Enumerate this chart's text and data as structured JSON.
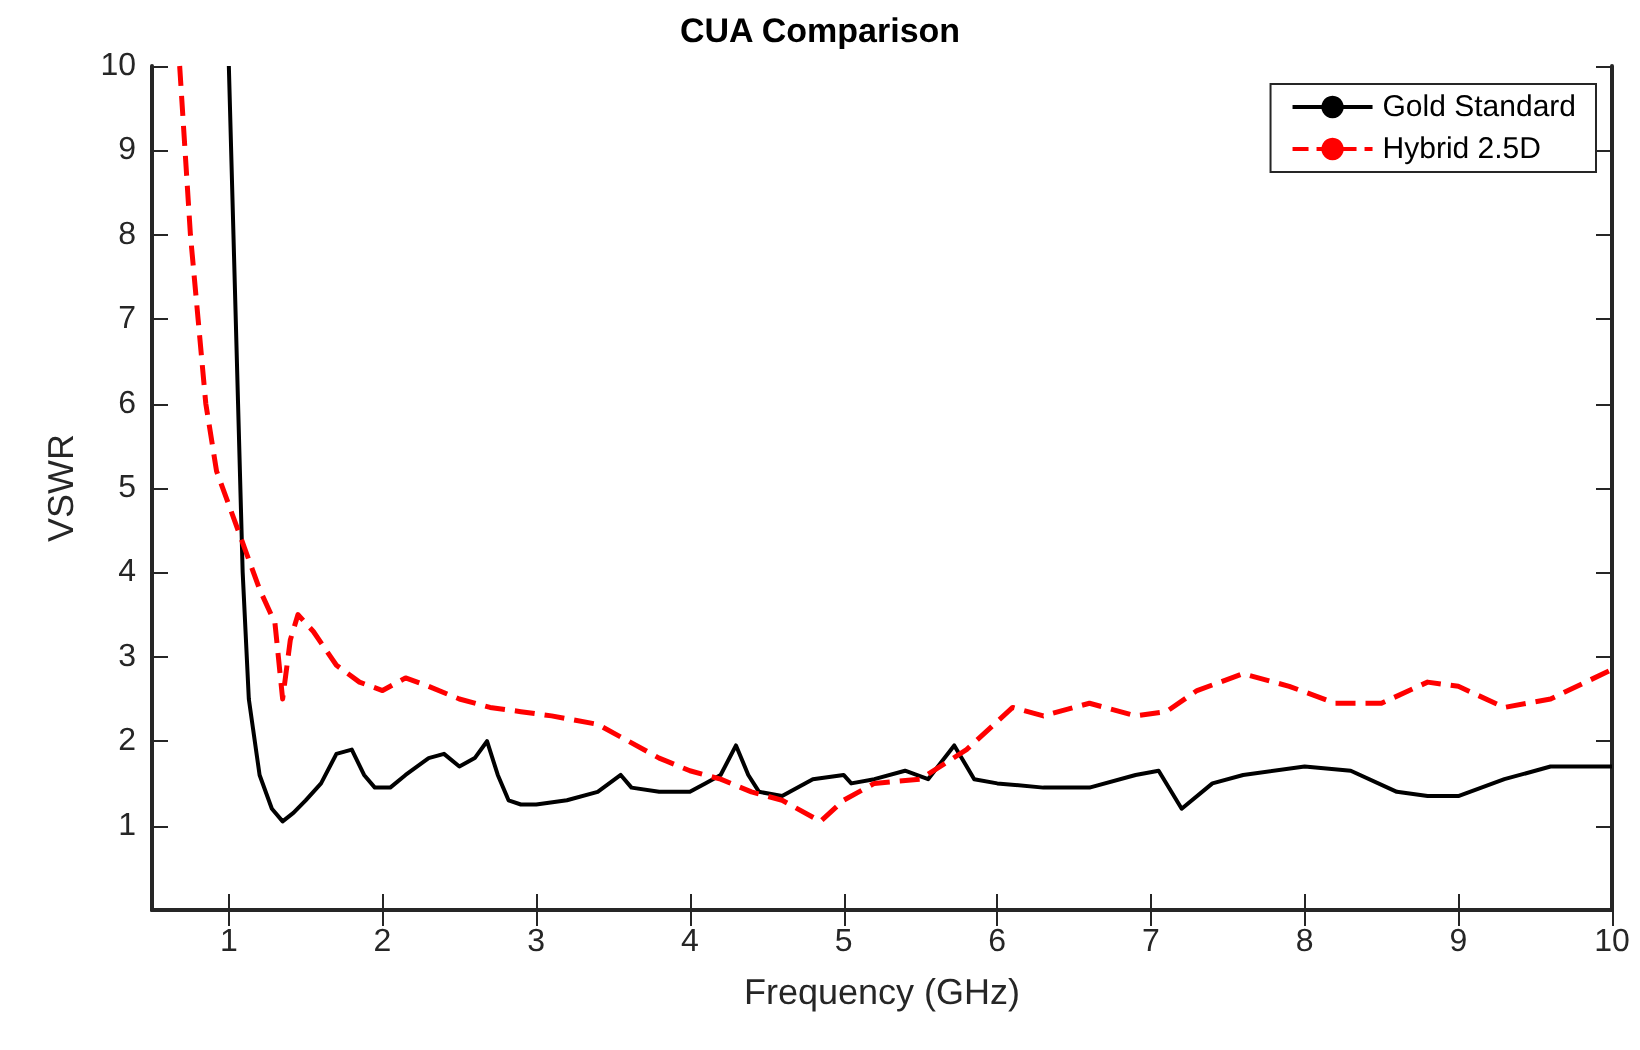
{
  "chart_data": {
    "type": "line",
    "title": "CUA Comparison",
    "xlabel": "Frequency (GHz)",
    "ylabel": "VSWR",
    "xlim": [
      0.5,
      10
    ],
    "xticks": [
      1,
      2,
      3,
      4,
      5,
      6,
      7,
      8,
      9,
      10
    ],
    "ylim": [
      0,
      10
    ],
    "yticks": [
      {
        "value": 0,
        "label": null
      },
      1,
      2,
      3,
      4,
      5,
      6,
      7,
      8,
      9,
      10
    ],
    "grid": false,
    "legend": "top right",
    "marker": "none",
    "series": [
      {
        "name": "Gold Standard",
        "color": "#000000",
        "line_style": "solid",
        "x": [
          1.0,
          1.03,
          1.06,
          1.09,
          1.13,
          1.2,
          1.28,
          1.35,
          1.42,
          1.5,
          1.6,
          1.7,
          1.8,
          1.88,
          1.95,
          2.05,
          2.15,
          2.3,
          2.4,
          2.5,
          2.6,
          2.68,
          2.75,
          2.82,
          2.9,
          3.0,
          3.2,
          3.4,
          3.55,
          3.62,
          3.8,
          4.0,
          4.1,
          4.2,
          4.3,
          4.38,
          4.45,
          4.6,
          4.8,
          5.0,
          5.05,
          5.2,
          5.4,
          5.55,
          5.72,
          5.85,
          6.0,
          6.3,
          6.6,
          6.9,
          7.05,
          7.2,
          7.4,
          7.6,
          8.0,
          8.3,
          8.6,
          8.8,
          9.0,
          9.3,
          9.6,
          10.0
        ],
        "values": [
          10,
          8,
          6,
          4,
          2.5,
          1.6,
          1.2,
          1.05,
          1.15,
          1.3,
          1.5,
          1.85,
          1.9,
          1.6,
          1.45,
          1.45,
          1.6,
          1.8,
          1.85,
          1.7,
          1.8,
          2.0,
          1.6,
          1.3,
          1.25,
          1.25,
          1.3,
          1.4,
          1.6,
          1.45,
          1.4,
          1.4,
          1.5,
          1.6,
          1.95,
          1.6,
          1.4,
          1.35,
          1.55,
          1.6,
          1.5,
          1.55,
          1.65,
          1.55,
          1.95,
          1.55,
          1.5,
          1.45,
          1.45,
          1.6,
          1.65,
          1.2,
          1.5,
          1.6,
          1.7,
          1.65,
          1.4,
          1.35,
          1.35,
          1.55,
          1.7,
          1.7
        ]
      },
      {
        "name": "Hybrid 2.5D",
        "color": "#ff0000",
        "line_style": "dashed",
        "x": [
          0.68,
          0.75,
          0.8,
          0.85,
          0.92,
          1.0,
          1.1,
          1.2,
          1.3,
          1.35,
          1.4,
          1.45,
          1.55,
          1.7,
          1.85,
          2.0,
          2.15,
          2.3,
          2.5,
          2.7,
          2.9,
          3.1,
          3.4,
          3.6,
          3.8,
          4.0,
          4.2,
          4.4,
          4.6,
          4.85,
          5.0,
          5.2,
          5.5,
          5.8,
          6.1,
          6.3,
          6.6,
          6.9,
          7.1,
          7.3,
          7.6,
          7.9,
          8.2,
          8.5,
          8.8,
          9.0,
          9.3,
          9.6,
          10.0
        ],
        "values": [
          10,
          8,
          7,
          6,
          5.2,
          4.8,
          4.3,
          3.8,
          3.4,
          2.5,
          3.2,
          3.5,
          3.3,
          2.9,
          2.7,
          2.6,
          2.75,
          2.65,
          2.5,
          2.4,
          2.35,
          2.3,
          2.2,
          2.0,
          1.8,
          1.65,
          1.55,
          1.4,
          1.3,
          1.05,
          1.3,
          1.5,
          1.55,
          1.9,
          2.4,
          2.3,
          2.45,
          2.3,
          2.35,
          2.6,
          2.8,
          2.65,
          2.45,
          2.45,
          2.7,
          2.65,
          2.4,
          2.5,
          2.85
        ]
      }
    ]
  }
}
